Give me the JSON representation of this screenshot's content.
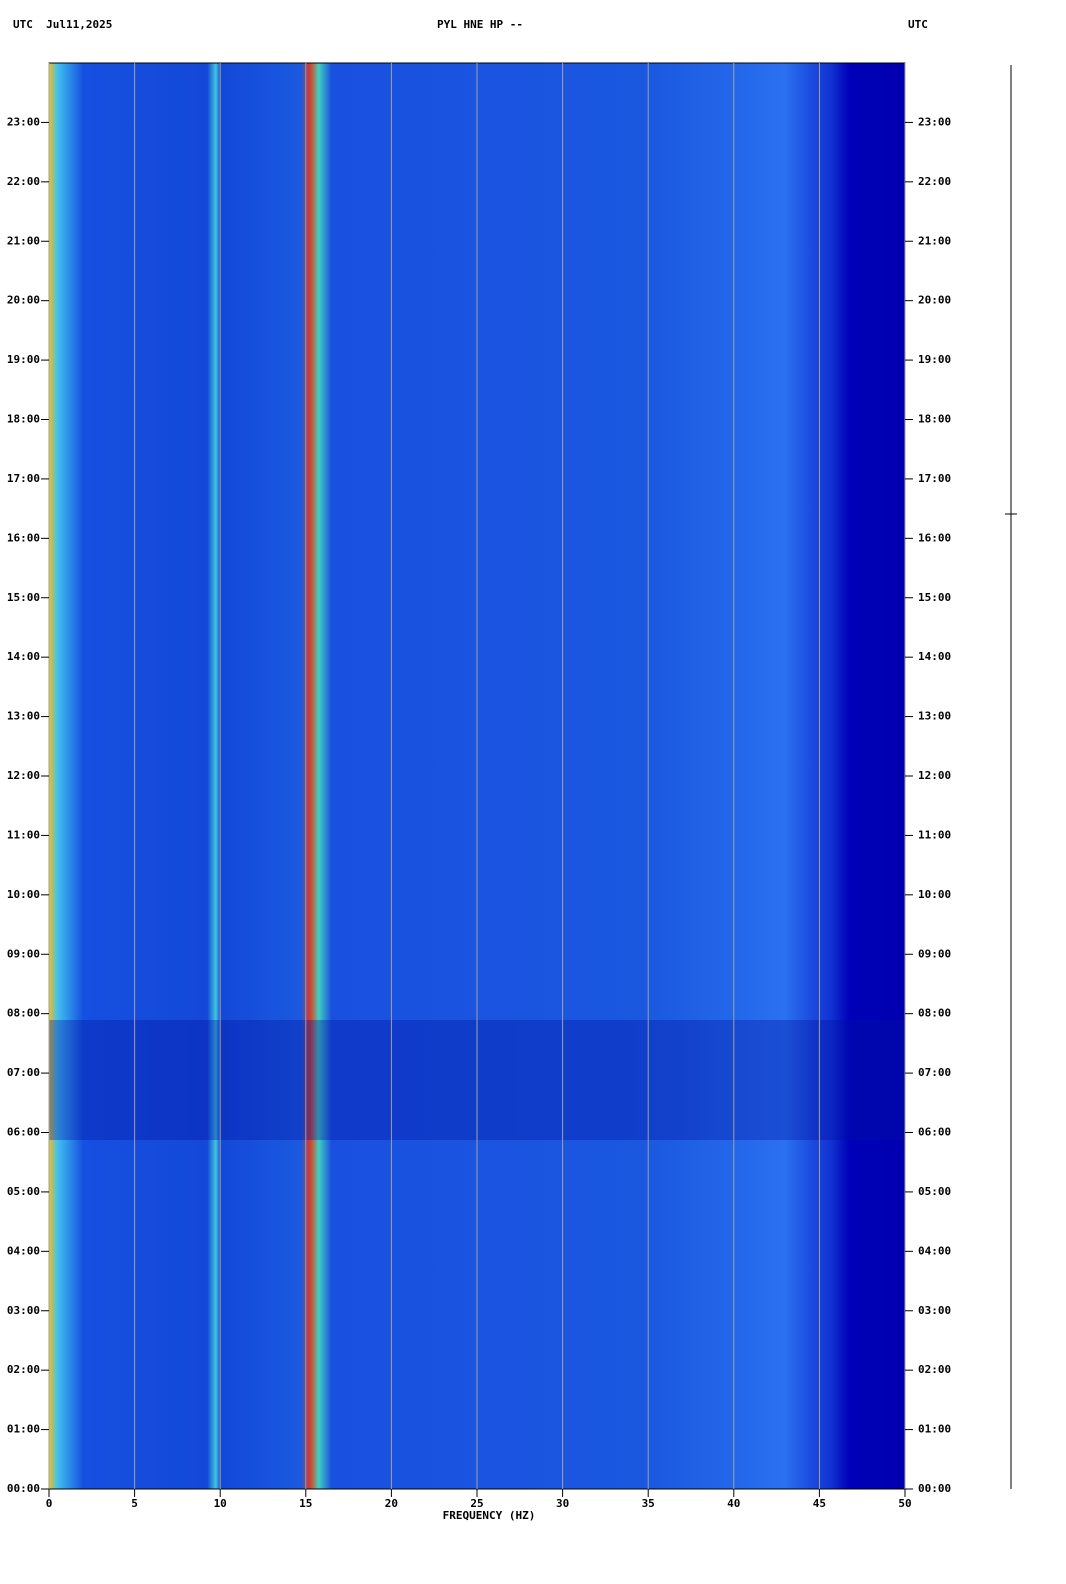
{
  "chart_data": {
    "type": "spectrogram",
    "title_left": "UTC  Jul11,2025",
    "title": "PYL HNE HP --",
    "title_right": "UTC",
    "x_label": "FREQUENCY (HZ)",
    "xlim": [
      0,
      50
    ],
    "xticks": [
      0,
      5,
      10,
      15,
      20,
      25,
      30,
      35,
      40,
      45,
      50
    ],
    "ylim": [
      0,
      24
    ],
    "yticks": [
      {
        "value": 0,
        "label": "00:00"
      },
      {
        "value": 1,
        "label": "01:00"
      },
      {
        "value": 2,
        "label": "02:00"
      },
      {
        "value": 3,
        "label": "03:00"
      },
      {
        "value": 4,
        "label": "04:00"
      },
      {
        "value": 5,
        "label": "05:00"
      },
      {
        "value": 6,
        "label": "06:00"
      },
      {
        "value": 7,
        "label": "07:00"
      },
      {
        "value": 8,
        "label": "08:00"
      },
      {
        "value": 9,
        "label": "09:00"
      },
      {
        "value": 10,
        "label": "10:00"
      },
      {
        "value": 11,
        "label": "11:00"
      },
      {
        "value": 12,
        "label": "12:00"
      },
      {
        "value": 13,
        "label": "13:00"
      },
      {
        "value": 14,
        "label": "14:00"
      },
      {
        "value": 15,
        "label": "15:00"
      },
      {
        "value": 16,
        "label": "16:00"
      },
      {
        "value": 17,
        "label": "17:00"
      },
      {
        "value": 18,
        "label": "18:00"
      },
      {
        "value": 19,
        "label": "19:00"
      },
      {
        "value": 20,
        "label": "20:00"
      },
      {
        "value": 21,
        "label": "21:00"
      },
      {
        "value": 22,
        "label": "22:00"
      },
      {
        "value": 23,
        "label": "23:00"
      }
    ],
    "grid": true
  }
}
